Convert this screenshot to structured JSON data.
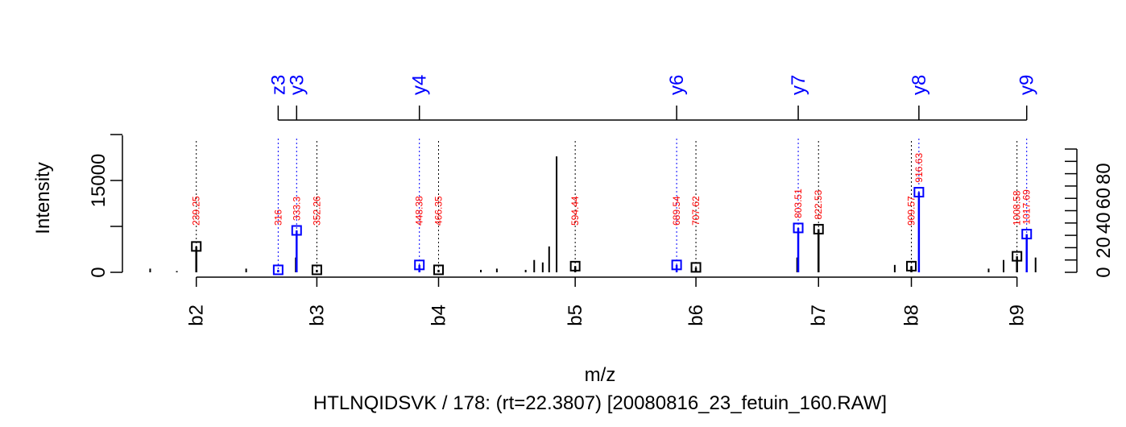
{
  "chart_data": {
    "type": "bar",
    "title": "HTLNQIDSVK / 178: (rt=22.3807) [20080816_23_fetuin_160.RAW]",
    "xlabel": "m/z",
    "ylabel": "Intensity",
    "yticks_left": [
      "0",
      "15000"
    ],
    "yticks_right": [
      "0",
      "20",
      "40",
      "60",
      "80"
    ],
    "b_ions": [
      {
        "label": "b2",
        "mz": 239.25
      },
      {
        "label": "b3",
        "mz": 352.26
      },
      {
        "label": "b4",
        "mz": 466.35
      },
      {
        "label": "b5",
        "mz": 594.44
      },
      {
        "label": "b6",
        "mz": 707.62
      },
      {
        "label": "b7",
        "mz": 822.53
      },
      {
        "label": "b8",
        "mz": 909.57
      },
      {
        "label": "b9",
        "mz": 1008.58
      }
    ],
    "yz_ions": [
      {
        "label": "z3",
        "mz": 316
      },
      {
        "label": "y3",
        "mz": 333.3
      },
      {
        "label": "y4",
        "mz": 448.38
      },
      {
        "label": "y6",
        "mz": 689.54
      },
      {
        "label": "y7",
        "mz": 803.51
      },
      {
        "label": "y8",
        "mz": 916.63
      },
      {
        "label": "y9",
        "mz": 1017.69
      }
    ],
    "matched_peaks": [
      {
        "mz": 239.25,
        "label": "239.25",
        "intensity": 21,
        "series": "b",
        "text_color": "#ff0000",
        "line_color": "#000000"
      },
      {
        "mz": 316,
        "label": "316",
        "intensity": 2,
        "series": "z",
        "text_color": "#ff0000",
        "line_color": "#0000ff"
      },
      {
        "mz": 333.3,
        "label": "333.3",
        "intensity": 34,
        "series": "y",
        "text_color": "#ff0000",
        "line_color": "#0000ff"
      },
      {
        "mz": 352.26,
        "label": "352.26",
        "intensity": 2,
        "series": "b",
        "text_color": "#ff0000",
        "line_color": "#000000"
      },
      {
        "mz": 448.38,
        "label": "448.38",
        "intensity": 6,
        "series": "y",
        "text_color": "#ff0000",
        "line_color": "#0000ff"
      },
      {
        "mz": 466.35,
        "label": "466.35",
        "intensity": 2,
        "series": "b",
        "text_color": "#ff0000",
        "line_color": "#000000"
      },
      {
        "mz": 594.44,
        "label": "594.44",
        "intensity": 5,
        "series": "b",
        "text_color": "#ff0000",
        "line_color": "#000000"
      },
      {
        "mz": 689.54,
        "label": "689.54",
        "intensity": 6,
        "series": "y",
        "text_color": "#ff0000",
        "line_color": "#0000ff"
      },
      {
        "mz": 707.62,
        "label": "707.62",
        "intensity": 4,
        "series": "b",
        "text_color": "#ff0000",
        "line_color": "#000000"
      },
      {
        "mz": 803.51,
        "label": "803.51",
        "intensity": 36,
        "series": "y",
        "text_color": "#ff0000",
        "line_color": "#0000ff"
      },
      {
        "mz": 822.53,
        "label": "822.53",
        "intensity": 35,
        "series": "b",
        "text_color": "#ff0000",
        "line_color": "#000000"
      },
      {
        "mz": 909.57,
        "label": "909.57",
        "intensity": 5,
        "series": "b",
        "text_color": "#ff0000",
        "line_color": "#000000"
      },
      {
        "mz": 916.63,
        "label": "916.63",
        "intensity": 65,
        "series": "y",
        "text_color": "#ff0000",
        "line_color": "#0000ff"
      },
      {
        "mz": 1008.58,
        "label": "1008.58",
        "intensity": 13,
        "series": "b",
        "text_color": "#ff0000",
        "line_color": "#000000"
      },
      {
        "mz": 1017.69,
        "label": "1017.69",
        "intensity": 31,
        "series": "y",
        "text_color": "#ff0000",
        "line_color": "#0000ff"
      }
    ],
    "unmatched_peaks": [
      {
        "mz": 196,
        "intensity": 3
      },
      {
        "mz": 221,
        "intensity": 1
      },
      {
        "mz": 286,
        "intensity": 3
      },
      {
        "mz": 332.5,
        "intensity": 12
      },
      {
        "mz": 506,
        "intensity": 2
      },
      {
        "mz": 521,
        "intensity": 3
      },
      {
        "mz": 548,
        "intensity": 2
      },
      {
        "mz": 556,
        "intensity": 10
      },
      {
        "mz": 564,
        "intensity": 8
      },
      {
        "mz": 570,
        "intensity": 21
      },
      {
        "mz": 577,
        "intensity": 94
      },
      {
        "mz": 802.5,
        "intensity": 12
      },
      {
        "mz": 894,
        "intensity": 6
      },
      {
        "mz": 982,
        "intensity": 3
      },
      {
        "mz": 996,
        "intensity": 10
      },
      {
        "mz": 1026,
        "intensity": 12
      }
    ],
    "colors": {
      "b_series": "#000000",
      "yz_series": "#0000ff",
      "mz_label": "#ff0000",
      "ion_label": "#0000ff",
      "axis": "#000000"
    },
    "xlim": [
      170,
      1033
    ],
    "ylim_right": [
      0,
      100
    ]
  }
}
